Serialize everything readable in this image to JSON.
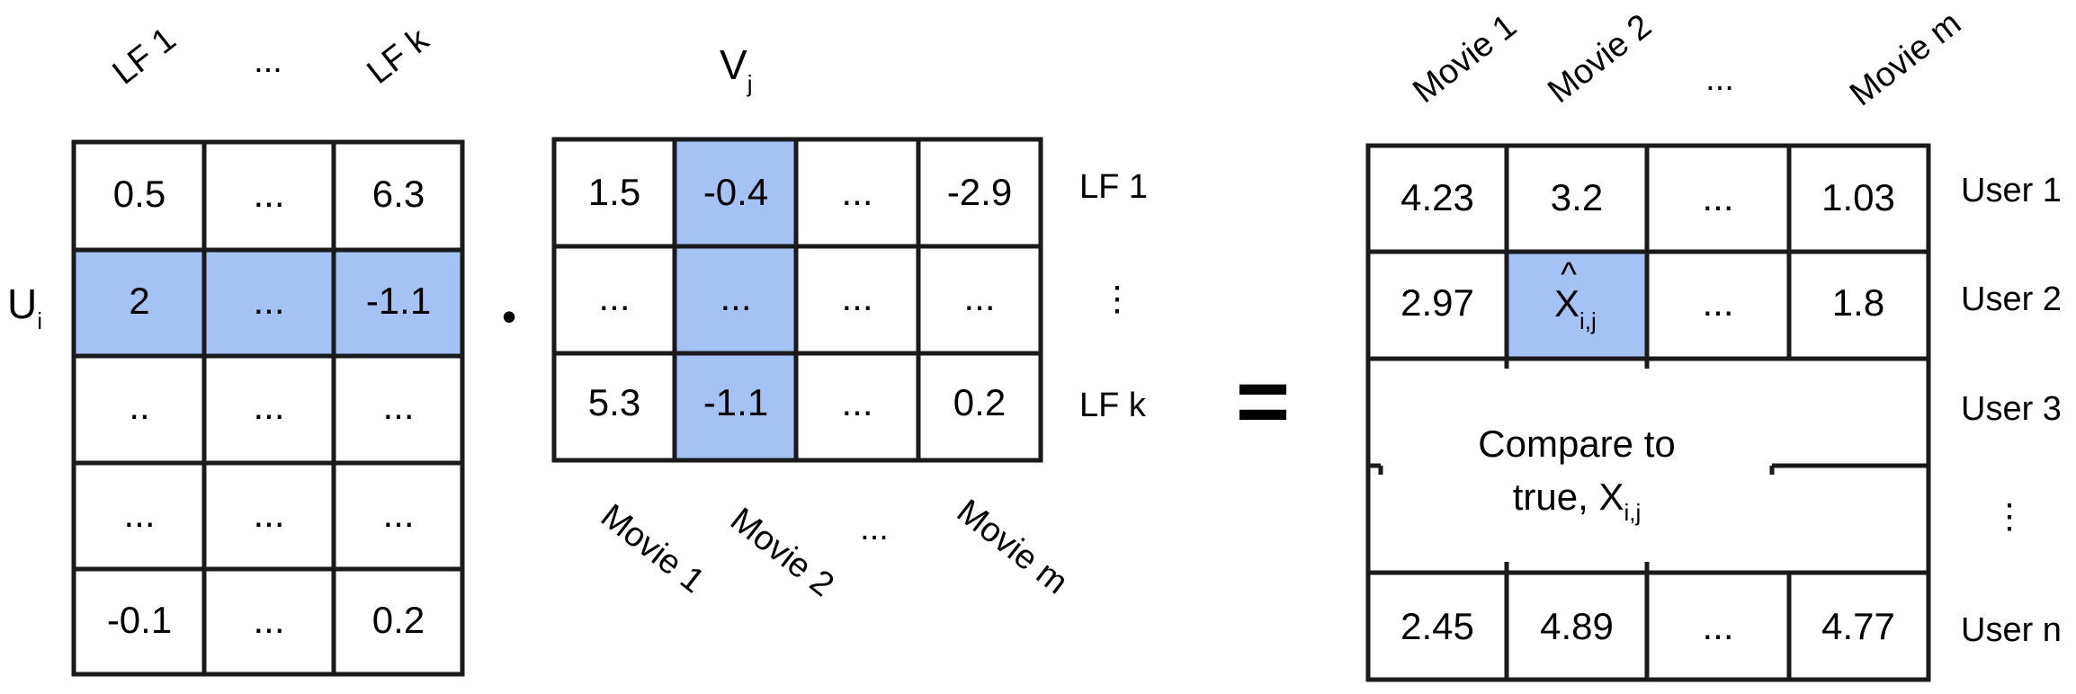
{
  "accent_color": "#a4c2f4",
  "u_matrix": {
    "label": "U",
    "label_sub": "i",
    "col_headers": [
      "LF 1",
      "...",
      "LF k"
    ],
    "rows": [
      [
        "0.5",
        "...",
        "6.3"
      ],
      [
        "2",
        "...",
        "-1.1"
      ],
      [
        "..",
        "...",
        "..."
      ],
      [
        "...",
        "...",
        "..."
      ],
      [
        "-0.1",
        "...",
        "0.2"
      ]
    ],
    "highlight_row": 1
  },
  "dot_symbol": "•",
  "v_matrix": {
    "label": "V",
    "label_sub": "j",
    "row_labels": [
      "LF 1",
      "⋮",
      "LF k"
    ],
    "col_headers": [
      "Movie 1",
      "Movie 2",
      "...",
      "Movie m"
    ],
    "rows": [
      [
        "1.5",
        "-0.4",
        "...",
        "-2.9"
      ],
      [
        "...",
        "...",
        "...",
        "..."
      ],
      [
        "5.3",
        "-1.1",
        "...",
        "0.2"
      ]
    ],
    "highlight_col": 1
  },
  "equals_symbol": "=",
  "x_matrix": {
    "col_headers": [
      "Movie 1",
      "Movie 2",
      "...",
      "Movie m"
    ],
    "row_labels": [
      "User 1",
      "User 2",
      "User 3",
      "⋮",
      "User n"
    ],
    "rows": [
      [
        "4.23",
        "3.2",
        "...",
        "1.03"
      ],
      [
        "2.97",
        "X",
        "...",
        "1.8"
      ],
      [
        "",
        "",
        "",
        ""
      ],
      [
        "",
        "",
        "",
        ""
      ],
      [
        "2.45",
        "4.89",
        "...",
        "4.77"
      ]
    ],
    "predicted_hat": "^",
    "predicted_sub": "i,j",
    "compare_line1": "Compare to",
    "compare_line2": "true, X",
    "compare_sub": "i,j"
  }
}
